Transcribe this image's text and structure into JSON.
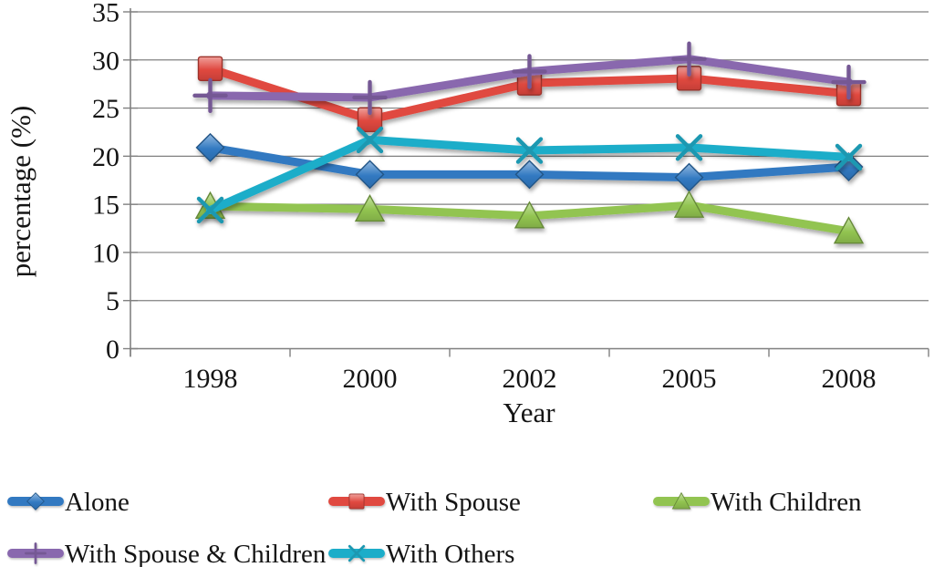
{
  "chart_data": {
    "type": "line",
    "title": "",
    "xlabel": "Year",
    "ylabel": "percentage (%)",
    "categories": [
      "1998",
      "2000",
      "2002",
      "2005",
      "2008"
    ],
    "ylim": [
      0,
      35
    ],
    "ytick_step": 5,
    "yticks": [
      "0",
      "5",
      "10",
      "15",
      "20",
      "25",
      "30",
      "35"
    ],
    "grid": "horizontal",
    "legend_position": "bottom-left-two-rows",
    "axis_color": "#808080",
    "text_color": "#141414",
    "series": [
      {
        "name": "Alone",
        "marker": "diamond",
        "color": "#3179c1",
        "values": [
          20.9,
          18.1,
          18.1,
          17.8,
          18.9
        ]
      },
      {
        "name": "With Spouse",
        "marker": "square",
        "color": "#e0483f",
        "values": [
          29.1,
          23.8,
          27.6,
          28.1,
          26.5
        ]
      },
      {
        "name": "With Children",
        "marker": "triangle",
        "color": "#92c451",
        "values": [
          14.8,
          14.5,
          13.8,
          14.9,
          12.2
        ]
      },
      {
        "name": "With Spouse & Children",
        "marker": "plus",
        "color": "#8968ae",
        "values": [
          26.3,
          26.1,
          28.8,
          30.1,
          27.7
        ]
      },
      {
        "name": "With Others",
        "marker": "x",
        "color": "#1fadc9",
        "values": [
          14.4,
          21.7,
          20.6,
          20.9,
          19.9
        ]
      }
    ]
  }
}
